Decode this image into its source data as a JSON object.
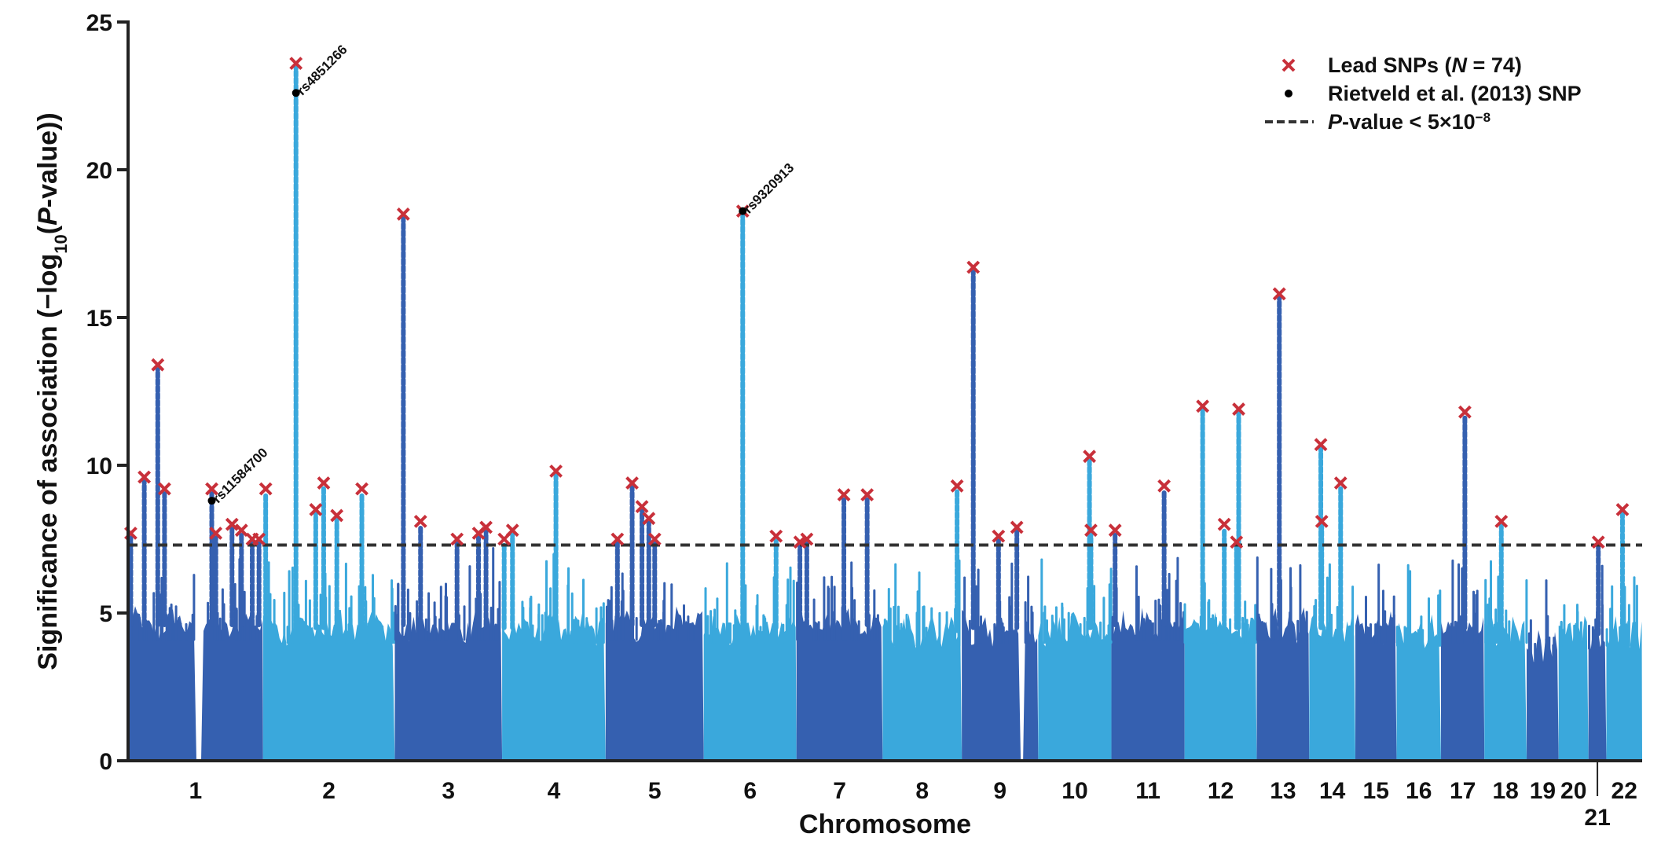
{
  "chart_data": {
    "type": "scatter",
    "subtype": "manhattan",
    "title": "",
    "xlabel": "Chromosome",
    "ylabel": "Significance of association (−log10(P-value))",
    "ylabel_parts": {
      "pre": "Significance of association (−log",
      "sub": "10",
      "mid": "(",
      "ital": "P",
      "post": "-value))"
    },
    "ylim": [
      0,
      25
    ],
    "yticks": [
      0,
      5,
      10,
      15,
      20,
      25
    ],
    "grid": false,
    "legend_position": "top-right",
    "threshold": {
      "value": 7.3,
      "label": "P-value < 5×10⁻⁸",
      "style": "dashed"
    },
    "colors": {
      "odd": "#3560b0",
      "even": "#3aa8dc",
      "lead": "#c8303a",
      "rietveld": "#000000",
      "threshold": "#333333"
    },
    "chromosomes": [
      {
        "name": "1",
        "length": 249,
        "base": 4.6,
        "centromere": 0.53
      },
      {
        "name": "2",
        "length": 243,
        "base": 4.5
      },
      {
        "name": "3",
        "length": 198,
        "base": 4.6
      },
      {
        "name": "4",
        "length": 191,
        "base": 4.5
      },
      {
        "name": "5",
        "length": 181,
        "base": 4.6
      },
      {
        "name": "6",
        "length": 171,
        "base": 4.5
      },
      {
        "name": "7",
        "length": 159,
        "base": 4.6
      },
      {
        "name": "8",
        "length": 146,
        "base": 4.4
      },
      {
        "name": "9",
        "length": 141,
        "base": 4.5,
        "centromere": 0.78
      },
      {
        "name": "10",
        "length": 135,
        "base": 4.5
      },
      {
        "name": "11",
        "length": 135,
        "base": 4.6
      },
      {
        "name": "12",
        "length": 133,
        "base": 4.5
      },
      {
        "name": "13",
        "length": 97,
        "base": 4.6
      },
      {
        "name": "14",
        "length": 85,
        "base": 4.5
      },
      {
        "name": "15",
        "length": 76,
        "base": 4.5
      },
      {
        "name": "16",
        "length": 82,
        "base": 4.4
      },
      {
        "name": "17",
        "length": 80,
        "base": 4.5
      },
      {
        "name": "18",
        "length": 78,
        "base": 4.5
      },
      {
        "name": "19",
        "length": 59,
        "base": 3.9
      },
      {
        "name": "20",
        "length": 55,
        "base": 4.4
      },
      {
        "name": "21",
        "length": 33,
        "base": 4.3
      },
      {
        "name": "22",
        "length": 66,
        "base": 4.4
      }
    ],
    "tick_labels": [
      "1",
      "2",
      "3",
      "4",
      "5",
      "6",
      "7",
      "8",
      "9",
      "10",
      "11",
      "12",
      "13",
      "14",
      "15",
      "16",
      "17",
      "18",
      "19",
      "20",
      "21",
      "22"
    ],
    "peaks": [
      {
        "chr": "1",
        "pos": 0.02,
        "value": 7.7
      },
      {
        "chr": "1",
        "pos": 0.12,
        "value": 9.6
      },
      {
        "chr": "1",
        "pos": 0.22,
        "value": 13.4
      },
      {
        "chr": "1",
        "pos": 0.27,
        "value": 9.2
      },
      {
        "chr": "1",
        "pos": 0.62,
        "value": 9.2
      },
      {
        "chr": "1",
        "pos": 0.65,
        "value": 7.7
      },
      {
        "chr": "1",
        "pos": 0.77,
        "value": 8.0
      },
      {
        "chr": "1",
        "pos": 0.84,
        "value": 7.8
      },
      {
        "chr": "1",
        "pos": 0.92,
        "value": 7.5
      },
      {
        "chr": "1",
        "pos": 0.97,
        "value": 7.5
      },
      {
        "chr": "2",
        "pos": 0.02,
        "value": 9.2
      },
      {
        "chr": "2",
        "pos": 0.25,
        "value": 23.6
      },
      {
        "chr": "2",
        "pos": 0.4,
        "value": 8.5
      },
      {
        "chr": "2",
        "pos": 0.46,
        "value": 9.4
      },
      {
        "chr": "2",
        "pos": 0.56,
        "value": 8.3
      },
      {
        "chr": "2",
        "pos": 0.75,
        "value": 9.2
      },
      {
        "chr": "3",
        "pos": 0.08,
        "value": 18.5
      },
      {
        "chr": "3",
        "pos": 0.24,
        "value": 8.1
      },
      {
        "chr": "3",
        "pos": 0.58,
        "value": 7.5
      },
      {
        "chr": "3",
        "pos": 0.78,
        "value": 7.7
      },
      {
        "chr": "3",
        "pos": 0.85,
        "value": 7.9
      },
      {
        "chr": "4",
        "pos": 0.02,
        "value": 7.5
      },
      {
        "chr": "4",
        "pos": 0.1,
        "value": 7.8
      },
      {
        "chr": "4",
        "pos": 0.52,
        "value": 9.8
      },
      {
        "chr": "5",
        "pos": 0.12,
        "value": 7.5
      },
      {
        "chr": "5",
        "pos": 0.27,
        "value": 9.4
      },
      {
        "chr": "5",
        "pos": 0.37,
        "value": 8.6
      },
      {
        "chr": "5",
        "pos": 0.44,
        "value": 8.2
      },
      {
        "chr": "5",
        "pos": 0.5,
        "value": 7.5
      },
      {
        "chr": "6",
        "pos": 0.42,
        "value": 18.6
      },
      {
        "chr": "6",
        "pos": 0.78,
        "value": 7.6
      },
      {
        "chr": "7",
        "pos": 0.04,
        "value": 7.4
      },
      {
        "chr": "7",
        "pos": 0.12,
        "value": 7.5
      },
      {
        "chr": "7",
        "pos": 0.55,
        "value": 9.0
      },
      {
        "chr": "7",
        "pos": 0.82,
        "value": 9.0
      },
      {
        "chr": "8",
        "pos": 0.94,
        "value": 9.3
      },
      {
        "chr": "9",
        "pos": 0.15,
        "value": 16.7
      },
      {
        "chr": "9",
        "pos": 0.48,
        "value": 7.6
      },
      {
        "chr": "9",
        "pos": 0.72,
        "value": 7.9
      },
      {
        "chr": "10",
        "pos": 0.7,
        "value": 10.3
      },
      {
        "chr": "10",
        "pos": 0.72,
        "value": 7.8
      },
      {
        "chr": "11",
        "pos": 0.05,
        "value": 7.8
      },
      {
        "chr": "11",
        "pos": 0.72,
        "value": 9.3
      },
      {
        "chr": "12",
        "pos": 0.25,
        "value": 12.0
      },
      {
        "chr": "12",
        "pos": 0.55,
        "value": 8.0
      },
      {
        "chr": "12",
        "pos": 0.75,
        "value": 11.9
      },
      {
        "chr": "12",
        "pos": 0.72,
        "value": 7.4
      },
      {
        "chr": "13",
        "pos": 0.43,
        "value": 15.8
      },
      {
        "chr": "14",
        "pos": 0.25,
        "value": 10.7
      },
      {
        "chr": "14",
        "pos": 0.27,
        "value": 8.1
      },
      {
        "chr": "14",
        "pos": 0.68,
        "value": 9.4
      },
      {
        "chr": "17",
        "pos": 0.55,
        "value": 11.8
      },
      {
        "chr": "18",
        "pos": 0.4,
        "value": 8.1
      },
      {
        "chr": "21",
        "pos": 0.55,
        "value": 7.4
      },
      {
        "chr": "22",
        "pos": 0.45,
        "value": 8.5
      }
    ],
    "rietveld_snps": [
      {
        "chr": "1",
        "pos": 0.62,
        "value": 8.8,
        "label": "rs11584700"
      },
      {
        "chr": "2",
        "pos": 0.25,
        "value": 22.6,
        "label": "rs4851266"
      },
      {
        "chr": "6",
        "pos": 0.42,
        "value": 18.6,
        "label": "rs9320913"
      }
    ],
    "legend": [
      {
        "marker": "cross",
        "label": "Lead SNPs (N = 74)",
        "parts": {
          "pre": "Lead SNPs (",
          "ital": "N",
          "post": " = 74)"
        }
      },
      {
        "marker": "dot",
        "label": "Rietveld et al. (2013) SNP"
      },
      {
        "marker": "dashed-line",
        "label": "P-value < 5×10⁻⁸",
        "parts": {
          "ital": "P",
          "post": "-value < 5×10",
          "sup": "−8"
        }
      }
    ]
  }
}
